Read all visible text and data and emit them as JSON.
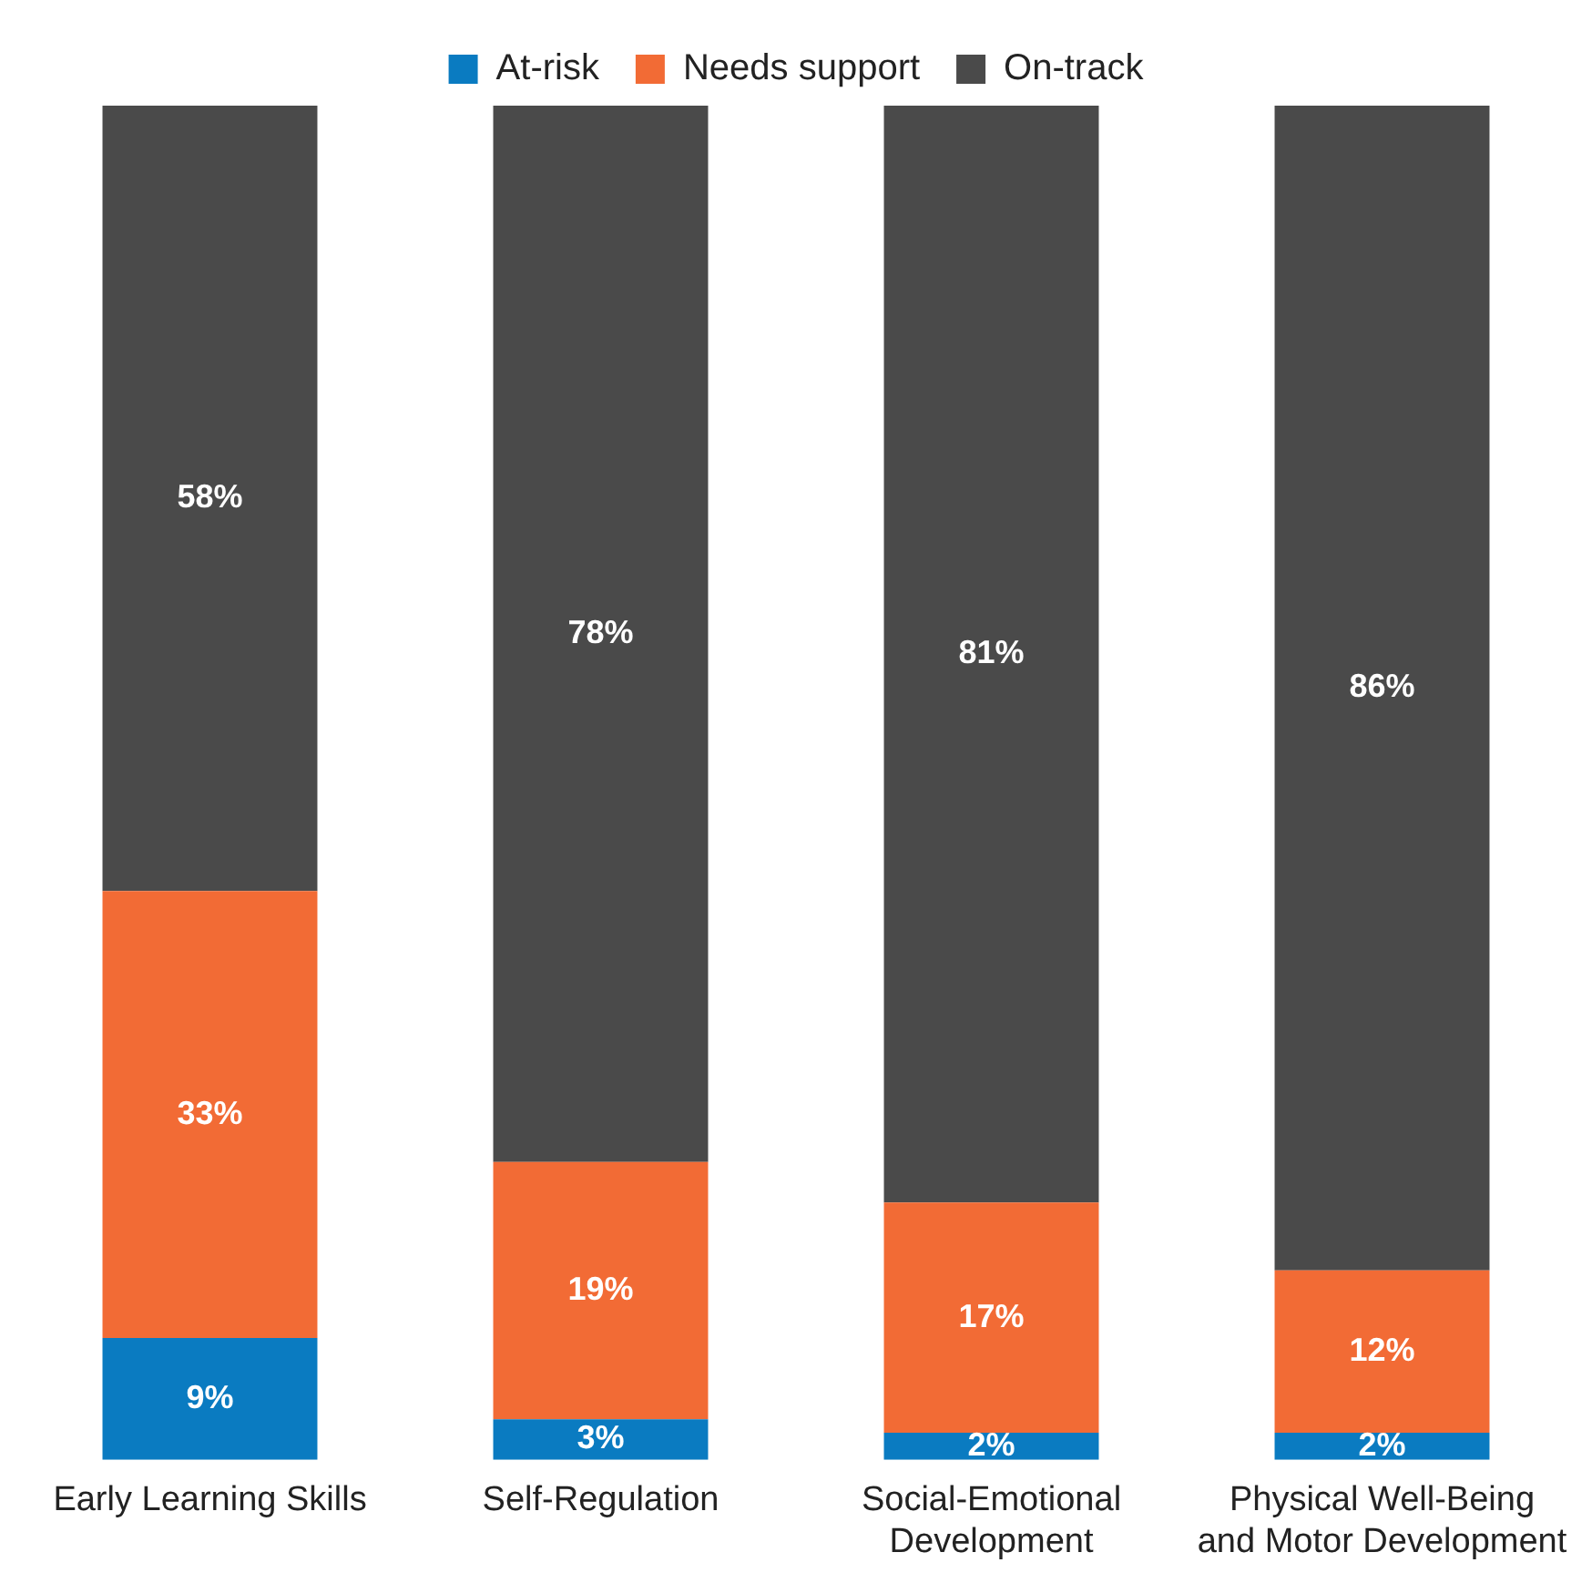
{
  "chart_data": {
    "type": "bar",
    "stacked": true,
    "categories": [
      "Early Learning Skills",
      "Self-Regulation",
      "Social-Emotional Development",
      "Physical Well-Being and Motor Development"
    ],
    "series": [
      {
        "name": "At-risk",
        "color": "#0a7bc1",
        "values": [
          9,
          3,
          2,
          2
        ],
        "value_labels": [
          "9%",
          "3%",
          "2%",
          "2%"
        ]
      },
      {
        "name": "Needs support",
        "color": "#f26b35",
        "values": [
          33,
          19,
          17,
          12
        ],
        "value_labels": [
          "33%",
          "19%",
          "17%",
          "12%"
        ]
      },
      {
        "name": "On-track",
        "color": "#4a4a4a",
        "values": [
          58,
          78,
          81,
          86
        ],
        "value_labels": [
          "58%",
          "78%",
          "81%",
          "86%"
        ]
      }
    ],
    "legend": "top",
    "grid": false,
    "tick_labels": "x"
  }
}
